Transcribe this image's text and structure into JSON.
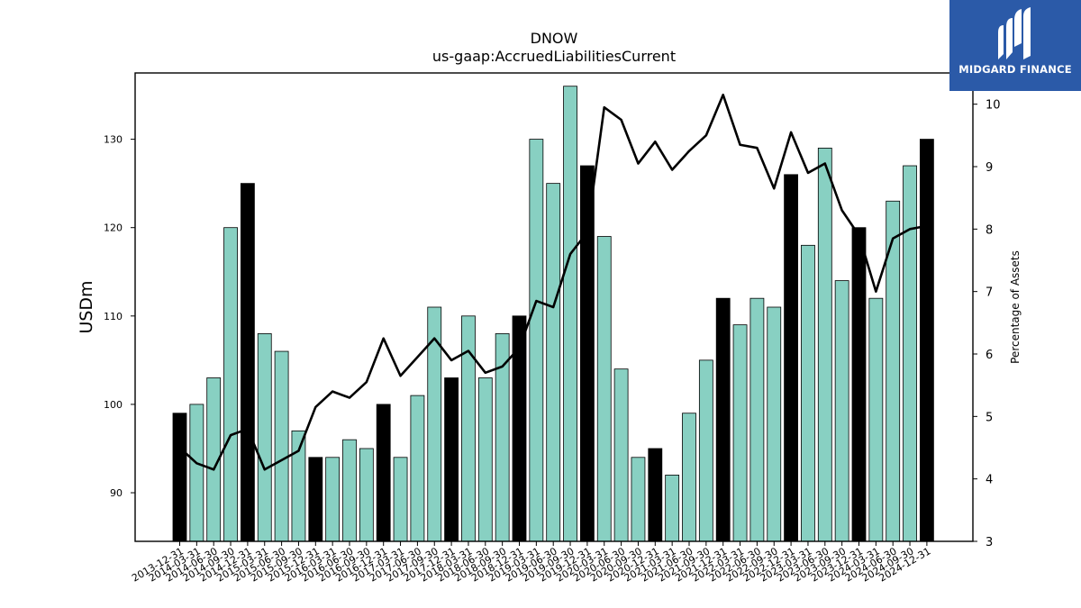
{
  "chart_data": {
    "type": "bar+line",
    "title": "DNOW",
    "subtitle": "us-gaap:AccruedLiabilitiesCurrent",
    "ylabel": "USDm",
    "y2label": "Percentage of Assets",
    "ylim": [
      84.5,
      137.5
    ],
    "y2lim": [
      3,
      10.5
    ],
    "yticks": [
      90,
      100,
      110,
      120,
      130
    ],
    "y2ticks": [
      3,
      4,
      5,
      6,
      7,
      8,
      9,
      10
    ],
    "categories": [
      "2013-12-31",
      "2014-03-31",
      "2014-06-30",
      "2014-09-30",
      "2014-12-31",
      "2015-03-31",
      "2015-06-30",
      "2015-09-30",
      "2015-12-31",
      "2016-03-31",
      "2016-06-30",
      "2016-09-30",
      "2016-12-31",
      "2017-03-31",
      "2017-06-30",
      "2017-09-30",
      "2017-12-31",
      "2018-03-31",
      "2018-06-30",
      "2018-09-30",
      "2018-12-31",
      "2019-03-31",
      "2019-06-30",
      "2019-09-30",
      "2019-12-31",
      "2020-03-31",
      "2020-06-30",
      "2020-09-30",
      "2020-12-31",
      "2021-03-31",
      "2021-06-30",
      "2021-09-30",
      "2021-12-31",
      "2022-03-31",
      "2022-06-30",
      "2022-09-30",
      "2022-12-31",
      "2023-03-31",
      "2023-06-30",
      "2023-09-30",
      "2023-12-31",
      "2024-03-31",
      "2024-06-30",
      "2024-09-30",
      "2024-12-31"
    ],
    "series": [
      {
        "kind": "bar",
        "values": [
          99,
          100,
          103,
          120,
          125,
          108,
          106,
          97,
          94,
          94,
          96,
          95,
          100,
          94,
          101,
          111,
          103,
          110,
          103,
          108,
          110,
          130,
          125,
          136,
          127,
          119,
          104,
          94,
          95,
          92,
          99,
          105,
          112,
          109,
          112,
          111,
          126,
          118,
          129,
          114,
          120,
          112,
          123,
          127,
          130
        ],
        "year_end": [
          true,
          false,
          false,
          false,
          true,
          false,
          false,
          false,
          true,
          false,
          false,
          false,
          true,
          false,
          false,
          false,
          true,
          false,
          false,
          false,
          true,
          false,
          false,
          false,
          true,
          false,
          false,
          false,
          true,
          false,
          false,
          false,
          true,
          false,
          false,
          false,
          true,
          false,
          false,
          false,
          true,
          false,
          false,
          false,
          true
        ]
      },
      {
        "kind": "line",
        "axis": "right",
        "values": [
          4.5,
          4.25,
          4.15,
          4.7,
          4.8,
          4.15,
          4.3,
          4.45,
          5.15,
          5.4,
          5.3,
          5.55,
          6.25,
          5.65,
          5.95,
          6.25,
          5.9,
          6.05,
          5.7,
          5.8,
          6.1,
          6.85,
          6.75,
          7.6,
          7.95,
          9.95,
          9.75,
          9.05,
          9.4,
          8.95,
          9.25,
          9.5,
          10.15,
          9.35,
          9.3,
          8.65,
          9.55,
          8.9,
          9.05,
          8.3,
          7.9,
          7.0,
          7.85,
          8.0,
          8.05
        ]
      }
    ],
    "colors": {
      "bar": "#88d0c2",
      "bar_year_end": "#000000",
      "line": "#000000",
      "edge": "#000000"
    },
    "grid": false
  },
  "logo": {
    "text": "MIDGARD FINANCE",
    "color": "#2b5aa8"
  }
}
